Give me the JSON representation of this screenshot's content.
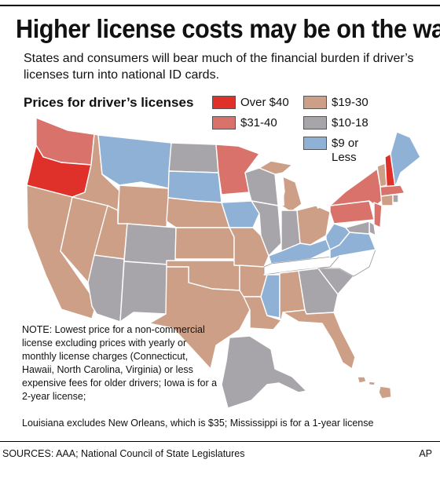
{
  "title": "Higher license costs may be on the way",
  "subtitle": "States and consumers will bear much of the financial burden if driver’s licenses turn into national ID cards.",
  "legend": {
    "title": "Prices for driver’s licenses",
    "items": [
      {
        "label": "Over $40",
        "color": "#e0302a"
      },
      {
        "label": "$19-30",
        "color": "#cd9f86"
      },
      {
        "label": "$31-40",
        "color": "#d8726a"
      },
      {
        "label": "$10-18",
        "color": "#a7a5aa"
      },
      {
        "label": "$9 or Less",
        "color": "#8fb1d6"
      }
    ]
  },
  "states": {
    "Over $40": [
      "Oregon",
      "New Hampshire"
    ],
    "$31-40": [
      "Washington",
      "Minnesota",
      "New York",
      "Pennsylvania",
      "Massachusetts",
      "New Jersey"
    ],
    "$19-30": [
      "California",
      "Nevada",
      "Utah",
      "Wyoming",
      "Nebraska",
      "Kansas",
      "Missouri",
      "Oklahoma",
      "Texas",
      "Arkansas",
      "Louisiana",
      "Alabama",
      "Florida",
      "Michigan",
      "Ohio",
      "Idaho",
      "Vermont",
      "Connecticut",
      "Hawaii"
    ],
    "$10-18": [
      "North Dakota",
      "Colorado",
      "Arizona",
      "New Mexico",
      "Wisconsin",
      "Illinois",
      "Indiana",
      "Georgia",
      "South Carolina",
      "Alaska",
      "Rhode Island",
      "Maryland",
      "Delaware"
    ],
    "$9 or Less": [
      "Montana",
      "South Dakota",
      "Iowa",
      "Kentucky",
      "Mississippi",
      "West Virginia",
      "Virginia",
      "Maine"
    ],
    "Uncolored": [
      "North Carolina",
      "Tennessee"
    ]
  },
  "note": "NOTE: Lowest price for a non-commercial license excluding prices with yearly or monthly license charges (Connecticut, Hawaii, North Carolina, Virginia) or less expensive fees for older drivers; Iowa is for a 2-year license;",
  "note_last": "Louisiana excludes New Orleans, which is $35; Mississippi is for a 1-year license",
  "sources": "SOURCES: AAA; National Council of State Legislatures",
  "credit": "AP"
}
